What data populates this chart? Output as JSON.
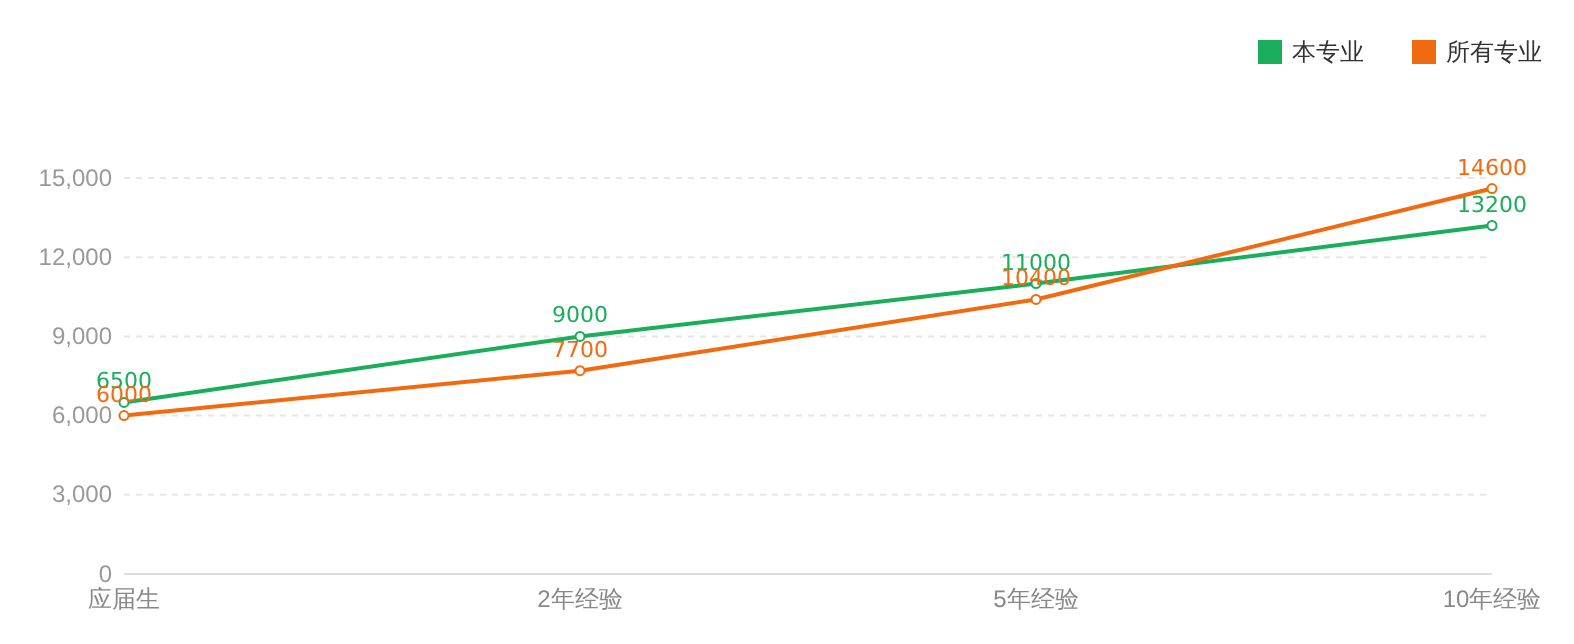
{
  "chart_data": {
    "type": "line",
    "categories": [
      "应届生",
      "2年经验",
      "5年经验",
      "10年经验"
    ],
    "series": [
      {
        "name": "本专业",
        "color": "#1aad5b",
        "values": [
          6500,
          9000,
          11000,
          13200
        ]
      },
      {
        "name": "所有专业",
        "color": "#f26a10",
        "values": [
          6000,
          7700,
          10400,
          14600
        ]
      }
    ],
    "ylim": [
      0,
      15000
    ],
    "yticks": [
      {
        "value": 0,
        "label": "0"
      },
      {
        "value": 3000,
        "label": "3,000"
      },
      {
        "value": 6000,
        "label": "6,000"
      },
      {
        "value": 9000,
        "label": "9,000"
      },
      {
        "value": 12000,
        "label": "12,000"
      },
      {
        "value": 15000,
        "label": "15,000"
      }
    ],
    "grid": "y",
    "legend": "top right",
    "marker": "circle",
    "line_style": "solid",
    "data_labels": true
  }
}
